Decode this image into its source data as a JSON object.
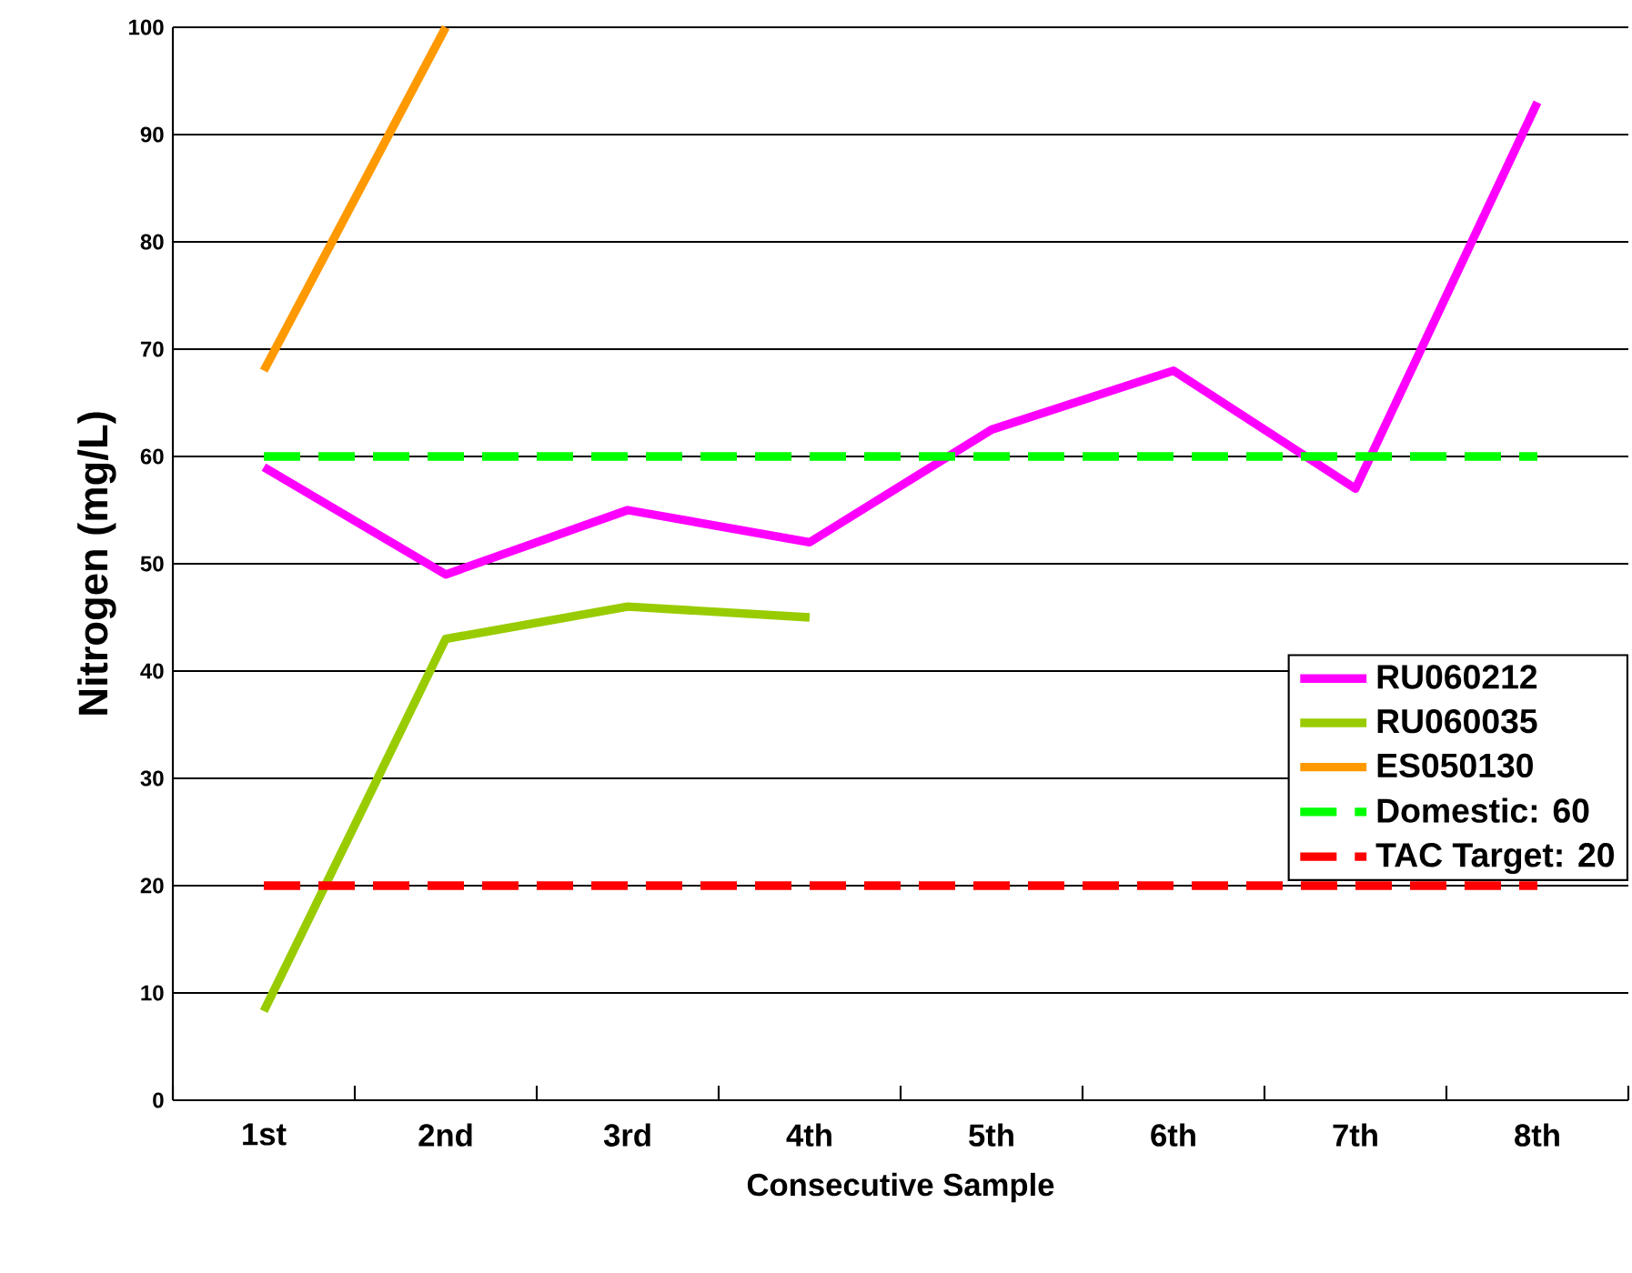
{
  "chart_data": {
    "type": "line",
    "xlabel": "Consecutive Sample",
    "ylabel": "Nitrogen (mg/L)",
    "categories": [
      "1st",
      "2nd",
      "3rd",
      "4th",
      "5th",
      "6th",
      "7th",
      "8th"
    ],
    "series": [
      {
        "name": "RU060212",
        "color": "#ff00ff",
        "values": [
          59,
          49,
          55,
          52,
          62.5,
          68,
          57,
          93
        ]
      },
      {
        "name": "RU060035",
        "color": "#99cc00",
        "values": [
          8.3,
          43,
          46,
          45,
          null,
          null,
          null,
          null
        ]
      },
      {
        "name": "ES050130",
        "color": "#ff9900",
        "values": [
          68,
          100,
          null,
          null,
          null,
          null,
          null,
          null
        ]
      },
      {
        "name": "Domestic: 60",
        "color": "#00ff00",
        "line_style": "dashed",
        "values": [
          60,
          60,
          60,
          60,
          60,
          60,
          60,
          60
        ]
      },
      {
        "name": "TAC Target: 20",
        "color": "#ff0000",
        "line_style": "dashed",
        "values": [
          20,
          20,
          20,
          20,
          20,
          20,
          20,
          20
        ]
      }
    ],
    "ylim": [
      0,
      100
    ],
    "yticks": [
      0,
      10,
      20,
      30,
      40,
      50,
      60,
      70,
      80,
      90,
      100
    ],
    "grid": "y",
    "legend": "right",
    "marker": "none",
    "line_style": "solid"
  }
}
